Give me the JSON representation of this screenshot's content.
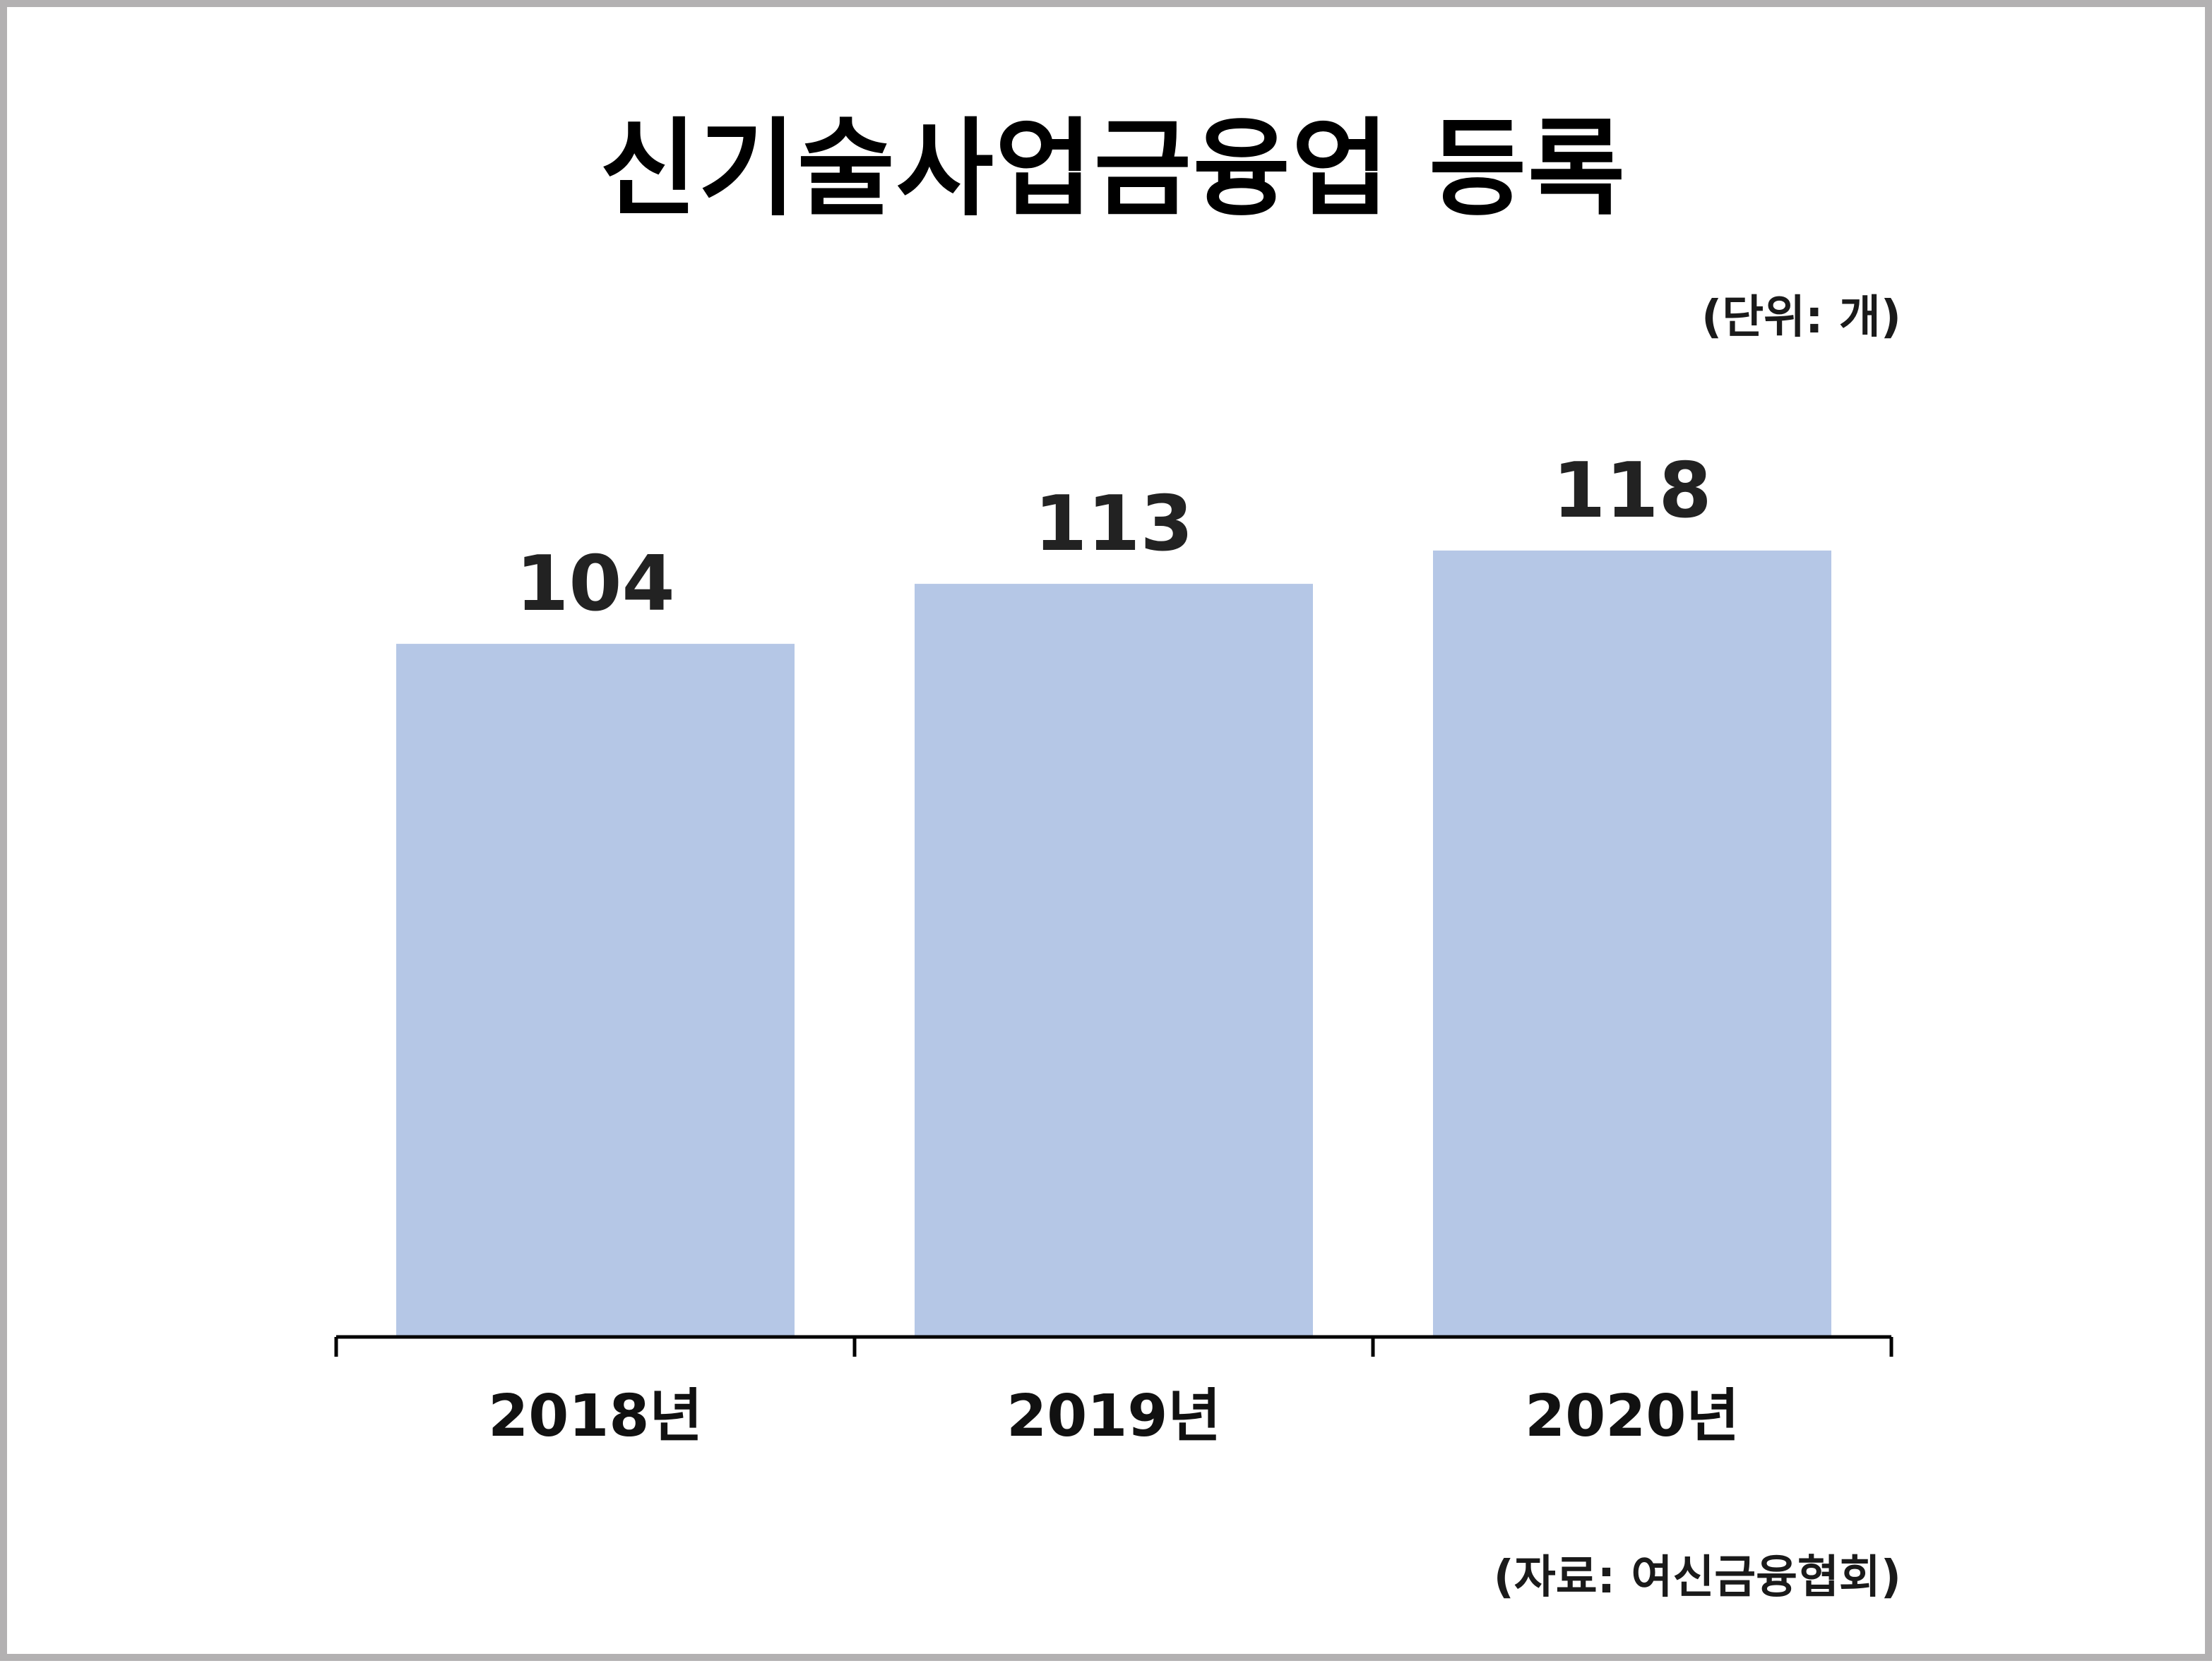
{
  "chart_data": {
    "type": "bar",
    "title": "신기술사업금융업 등록",
    "unit_note": "(단위: 개)",
    "source_note": "(자료: 여신금융협회)",
    "categories": [
      "2018년",
      "2019년",
      "2020년"
    ],
    "values": [
      104,
      113,
      118
    ],
    "data_labels": [
      "104",
      "113",
      "118"
    ],
    "ylim": [
      0,
      120
    ],
    "grid": false,
    "legend": "none",
    "colors": {
      "bar": "#b5c7e6",
      "axis": "#000000",
      "border": "#b3b1b2"
    }
  }
}
